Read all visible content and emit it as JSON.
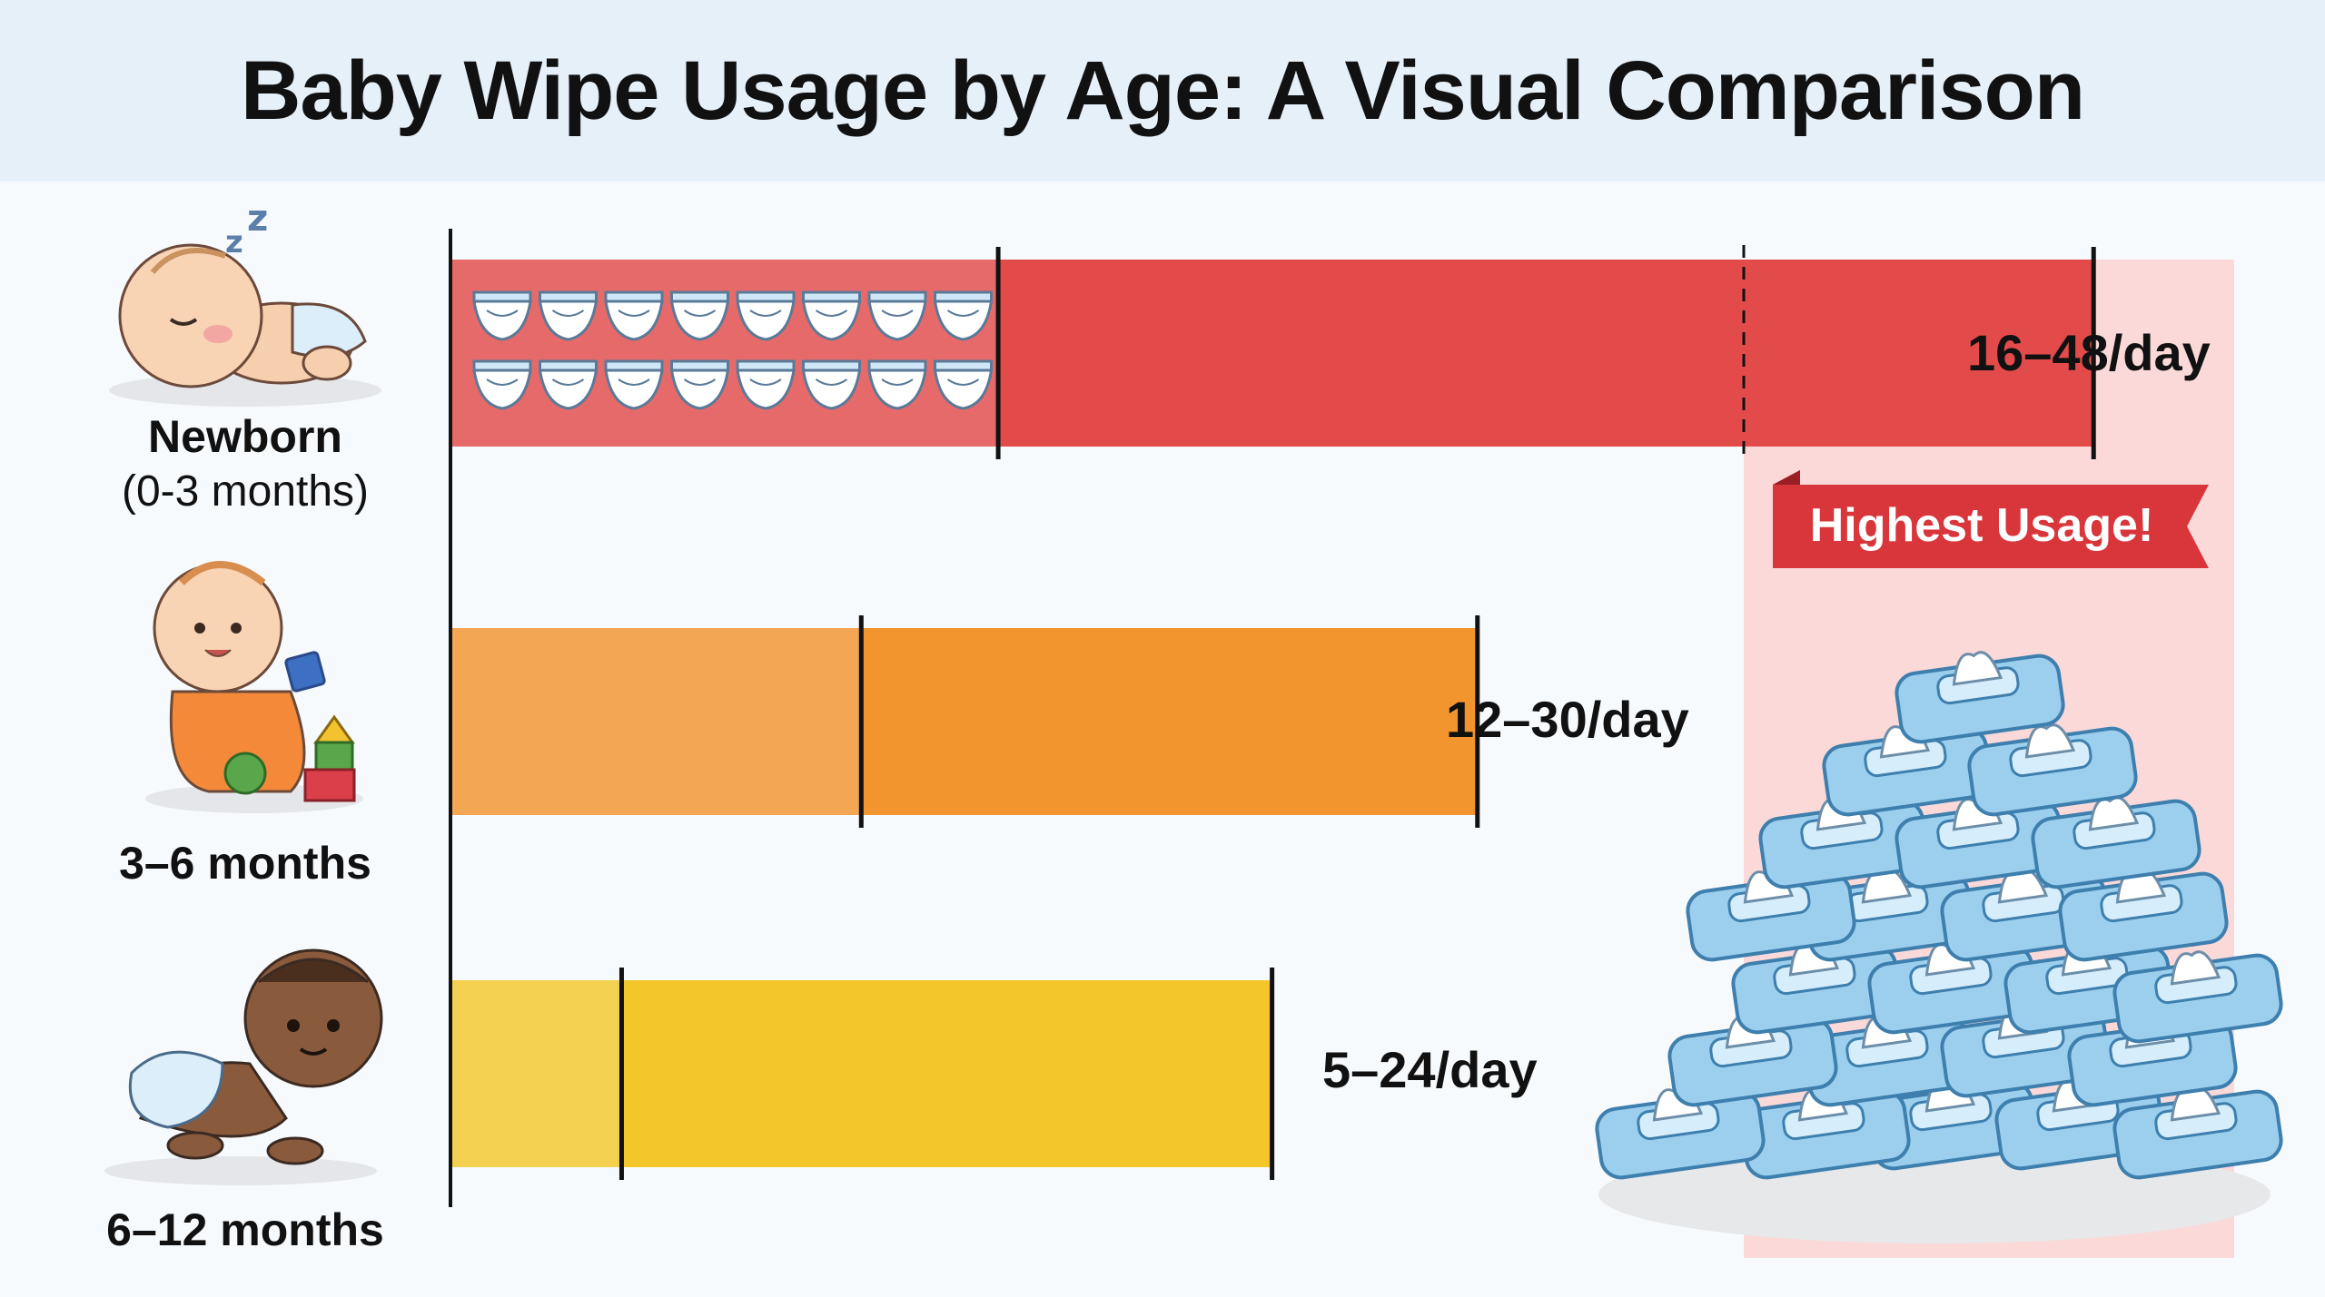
{
  "title": "Baby Wipe Usage by Age: A Visual Comparison",
  "callout": "Highest Usage!",
  "colors": {
    "newborn": "#e34b4b",
    "months_3_6": "#f2952e",
    "months_6_12": "#f3c72a",
    "highlight": "#fbd9d9",
    "header_bg": "#e6f0f9"
  },
  "groups": [
    {
      "name": "Newborn",
      "sub": "(0-3 months)",
      "icon": "sleeping-baby-icon"
    },
    {
      "name": "3–6 months",
      "sub": "",
      "icon": "sitting-baby-icon"
    },
    {
      "name": "6–12 months",
      "sub": "",
      "icon": "crawling-baby-icon"
    }
  ],
  "chart_data": {
    "type": "bar",
    "orientation": "horizontal",
    "title": "Baby Wipe Usage by Age: A Visual Comparison",
    "categories": [
      "Newborn (0-3 months)",
      "3–6 months",
      "6–12 months"
    ],
    "ranges": [
      {
        "min": 16,
        "max": 48,
        "label": "16–48/day"
      },
      {
        "min": 12,
        "max": 30,
        "label": "12–30/day"
      },
      {
        "min": 5,
        "max": 24,
        "label": "5–24/day"
      }
    ],
    "xlim": [
      0,
      52
    ],
    "grid": false,
    "highlight_category": "Newborn (0-3 months)",
    "decorations": {
      "diaper_icons_on_newborn_bar": 16,
      "wipe_pack_pile": "wipe-pack-pile-icon"
    }
  }
}
